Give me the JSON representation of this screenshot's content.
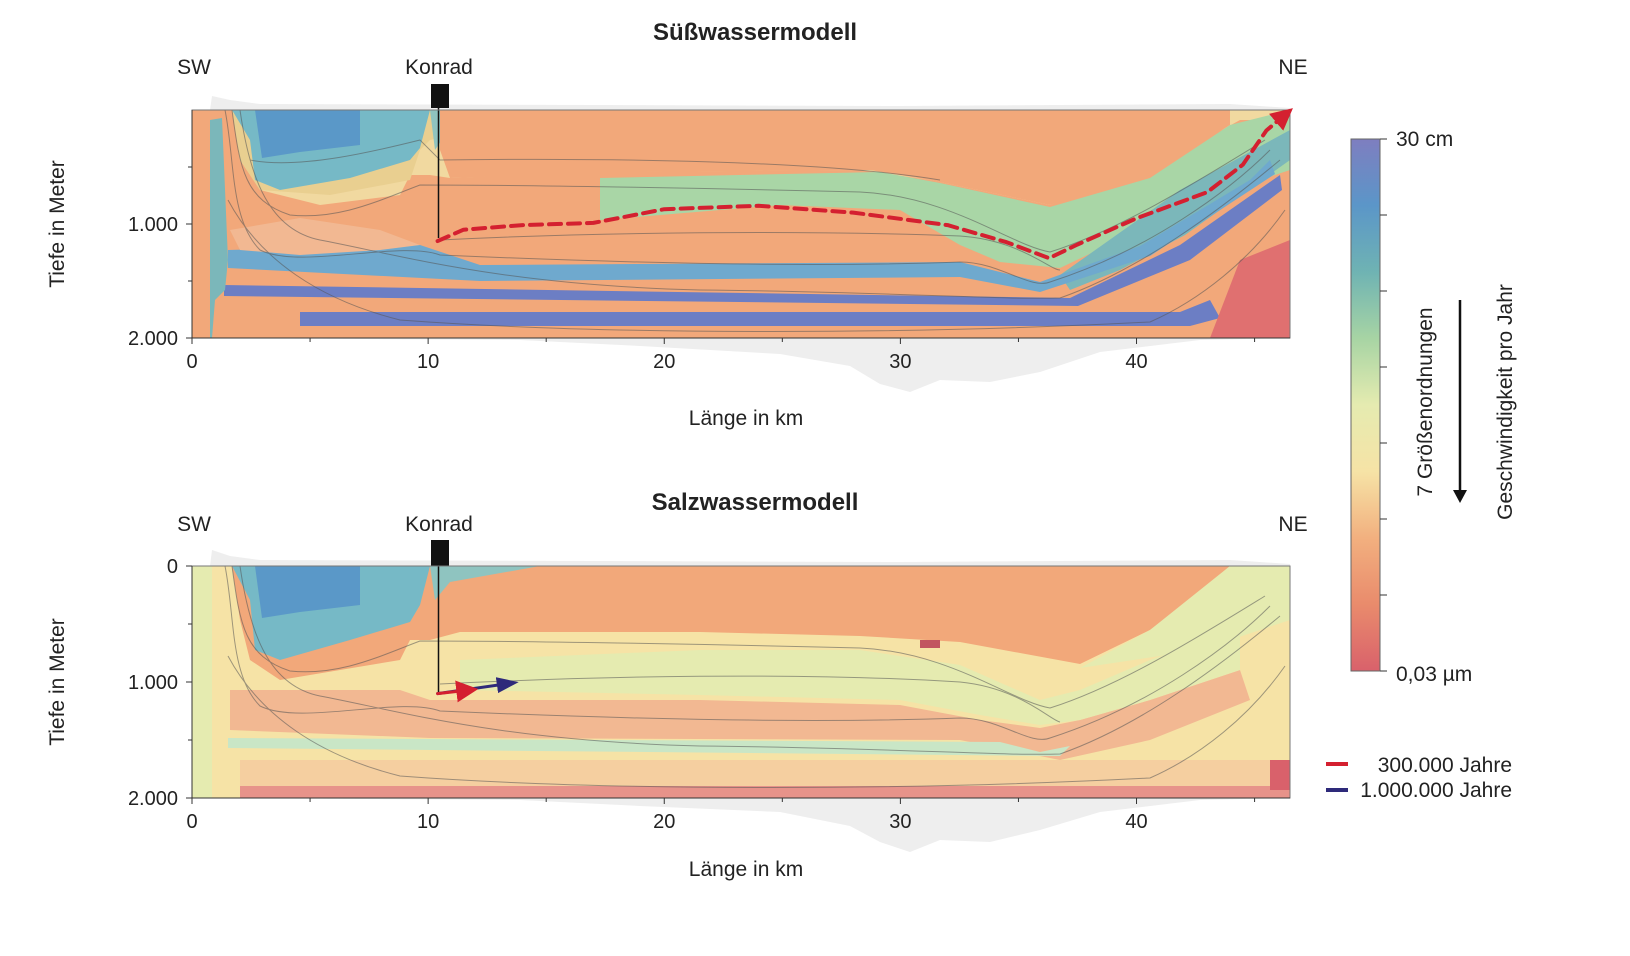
{
  "chart_data": [
    {
      "type": "heatmap",
      "title": "Süßwassermodell",
      "xlabel": "Länge in km",
      "ylabel": "Tiefe in Meter",
      "xlim": [
        0,
        46.5
      ],
      "ylim": [
        2000,
        0
      ],
      "x_ticks": [
        "0",
        "10",
        "20",
        "30",
        "40"
      ],
      "x_tick_values": [
        0,
        10,
        20,
        30,
        40
      ],
      "y_ticks": [
        "1.000",
        "2.000"
      ],
      "y_tick_values": [
        1000,
        2000
      ],
      "annotations": {
        "sw": "SW",
        "ne": "NE",
        "site": "Konrad",
        "site_km": 10.4
      },
      "paths": [
        {
          "name": "300.000 Jahre",
          "color": "#d42030",
          "style": "dashed",
          "points": [
            [
              10.4,
              1150
            ],
            [
              11.5,
              1050
            ],
            [
              14,
              1010
            ],
            [
              17,
              990
            ],
            [
              20,
              870
            ],
            [
              24,
              840
            ],
            [
              28,
              900
            ],
            [
              32,
              1010
            ],
            [
              34.5,
              1160
            ],
            [
              36.3,
              1300
            ],
            [
              37.5,
              1180
            ],
            [
              40,
              950
            ],
            [
              43,
              720
            ],
            [
              44.5,
              480
            ],
            [
              45.5,
              180
            ],
            [
              46.3,
              40
            ]
          ]
        }
      ]
    },
    {
      "type": "heatmap",
      "title": "Salzwassermodell",
      "xlabel": "Länge in km",
      "ylabel": "Tiefe in Meter",
      "xlim": [
        0,
        46.5
      ],
      "ylim": [
        2000,
        0
      ],
      "x_ticks": [
        "0",
        "10",
        "20",
        "30",
        "40"
      ],
      "x_tick_values": [
        0,
        10,
        20,
        30,
        40
      ],
      "y_ticks": [
        "0",
        "1.000",
        "2.000"
      ],
      "y_tick_values": [
        0,
        1000,
        2000
      ],
      "annotations": {
        "sw": "SW",
        "ne": "NE",
        "site": "Konrad",
        "site_km": 10.4
      },
      "paths": [
        {
          "name": "300.000 Jahre",
          "color": "#d42030",
          "style": "arrow",
          "points": [
            [
              10.4,
              1100
            ],
            [
              11.7,
              1070
            ]
          ]
        },
        {
          "name": "1.000.000 Jahre",
          "color": "#2e2a7a",
          "style": "arrow",
          "points": [
            [
              10.4,
              1100
            ],
            [
              13.5,
              1010
            ]
          ]
        }
      ]
    }
  ],
  "colorbar": {
    "max_label": "30 cm",
    "min_label": "0,03 µm",
    "title": "Geschwindigkeit pro Jahr",
    "side_label": "7 Größenordnungen",
    "colors": [
      "#7e7ec0",
      "#5b96c8",
      "#6fb3b3",
      "#a7d4a4",
      "#e5ebb0",
      "#f6e3a6",
      "#f2b07f",
      "#e98b6c",
      "#d9616b"
    ]
  },
  "legend": [
    {
      "label": "300.000 Jahre",
      "color": "#d42030"
    },
    {
      "label": "1.000.000 Jahre",
      "color": "#2e2a7a"
    }
  ]
}
